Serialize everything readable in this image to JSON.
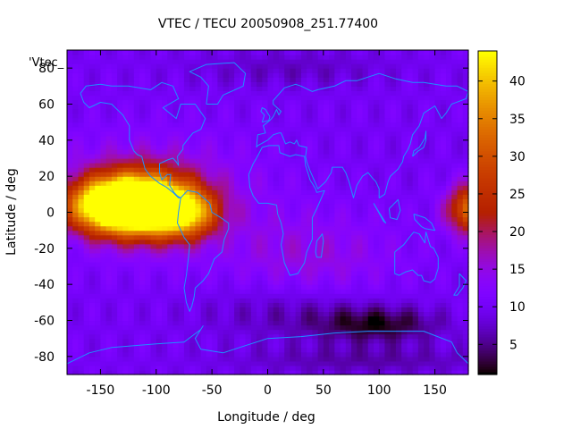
{
  "chart_data": {
    "type": "heatmap",
    "title": "VTEC / TECU 20050908_251.77400",
    "xlabel": "Longitude / deg",
    "ylabel": "Latitude / deg",
    "legend_label": "'Vtec_",
    "xlim": [
      -180,
      180
    ],
    "ylim": [
      -90,
      90
    ],
    "colorbar_range": [
      1,
      44
    ],
    "x_ticks": [
      -150,
      -100,
      -50,
      0,
      50,
      100,
      150
    ],
    "y_ticks": [
      -80,
      -60,
      -40,
      -20,
      0,
      20,
      40,
      60,
      80
    ],
    "colorbar_ticks": [
      5,
      10,
      15,
      20,
      25,
      30,
      35,
      40
    ],
    "colormap": "gnuplot-rgbformulae-7-5-15",
    "coastline_color": "#1e90ff",
    "grid": false,
    "legend_position": "top-left",
    "features": [
      {
        "lon": -112,
        "lat": 5,
        "vtec": 40,
        "sx": 38,
        "sy": 16
      },
      {
        "lon": -145,
        "lat": 4,
        "vtec": 32,
        "sx": 35,
        "sy": 14
      },
      {
        "lon": -75,
        "lat": 0,
        "vtec": 25,
        "sx": 30,
        "sy": 13
      },
      {
        "lon": 185,
        "lat": 2,
        "vtec": 26,
        "sx": 22,
        "sy": 13
      },
      {
        "lon": -105,
        "lat": 10,
        "vtec": 8,
        "sx": 90,
        "sy": 30
      },
      {
        "lon": 40,
        "lat": -25,
        "vtec": 5,
        "sx": 80,
        "sy": 25
      },
      {
        "lon": 100,
        "lat": -62,
        "vtec": -8,
        "sx": 55,
        "sy": 10
      },
      {
        "lon": 20,
        "lat": -55,
        "vtec": -4,
        "sx": 80,
        "sy": 16
      },
      {
        "lon": 90,
        "lat": -82,
        "vtec": -4,
        "sx": 120,
        "sy": 8
      },
      {
        "lon": 20,
        "lat": 80,
        "vtec": -3,
        "sx": 90,
        "sy": 10
      },
      {
        "lon": -40,
        "lat": -5,
        "vtec": -1,
        "sx": 20,
        "sy": 20
      }
    ]
  }
}
